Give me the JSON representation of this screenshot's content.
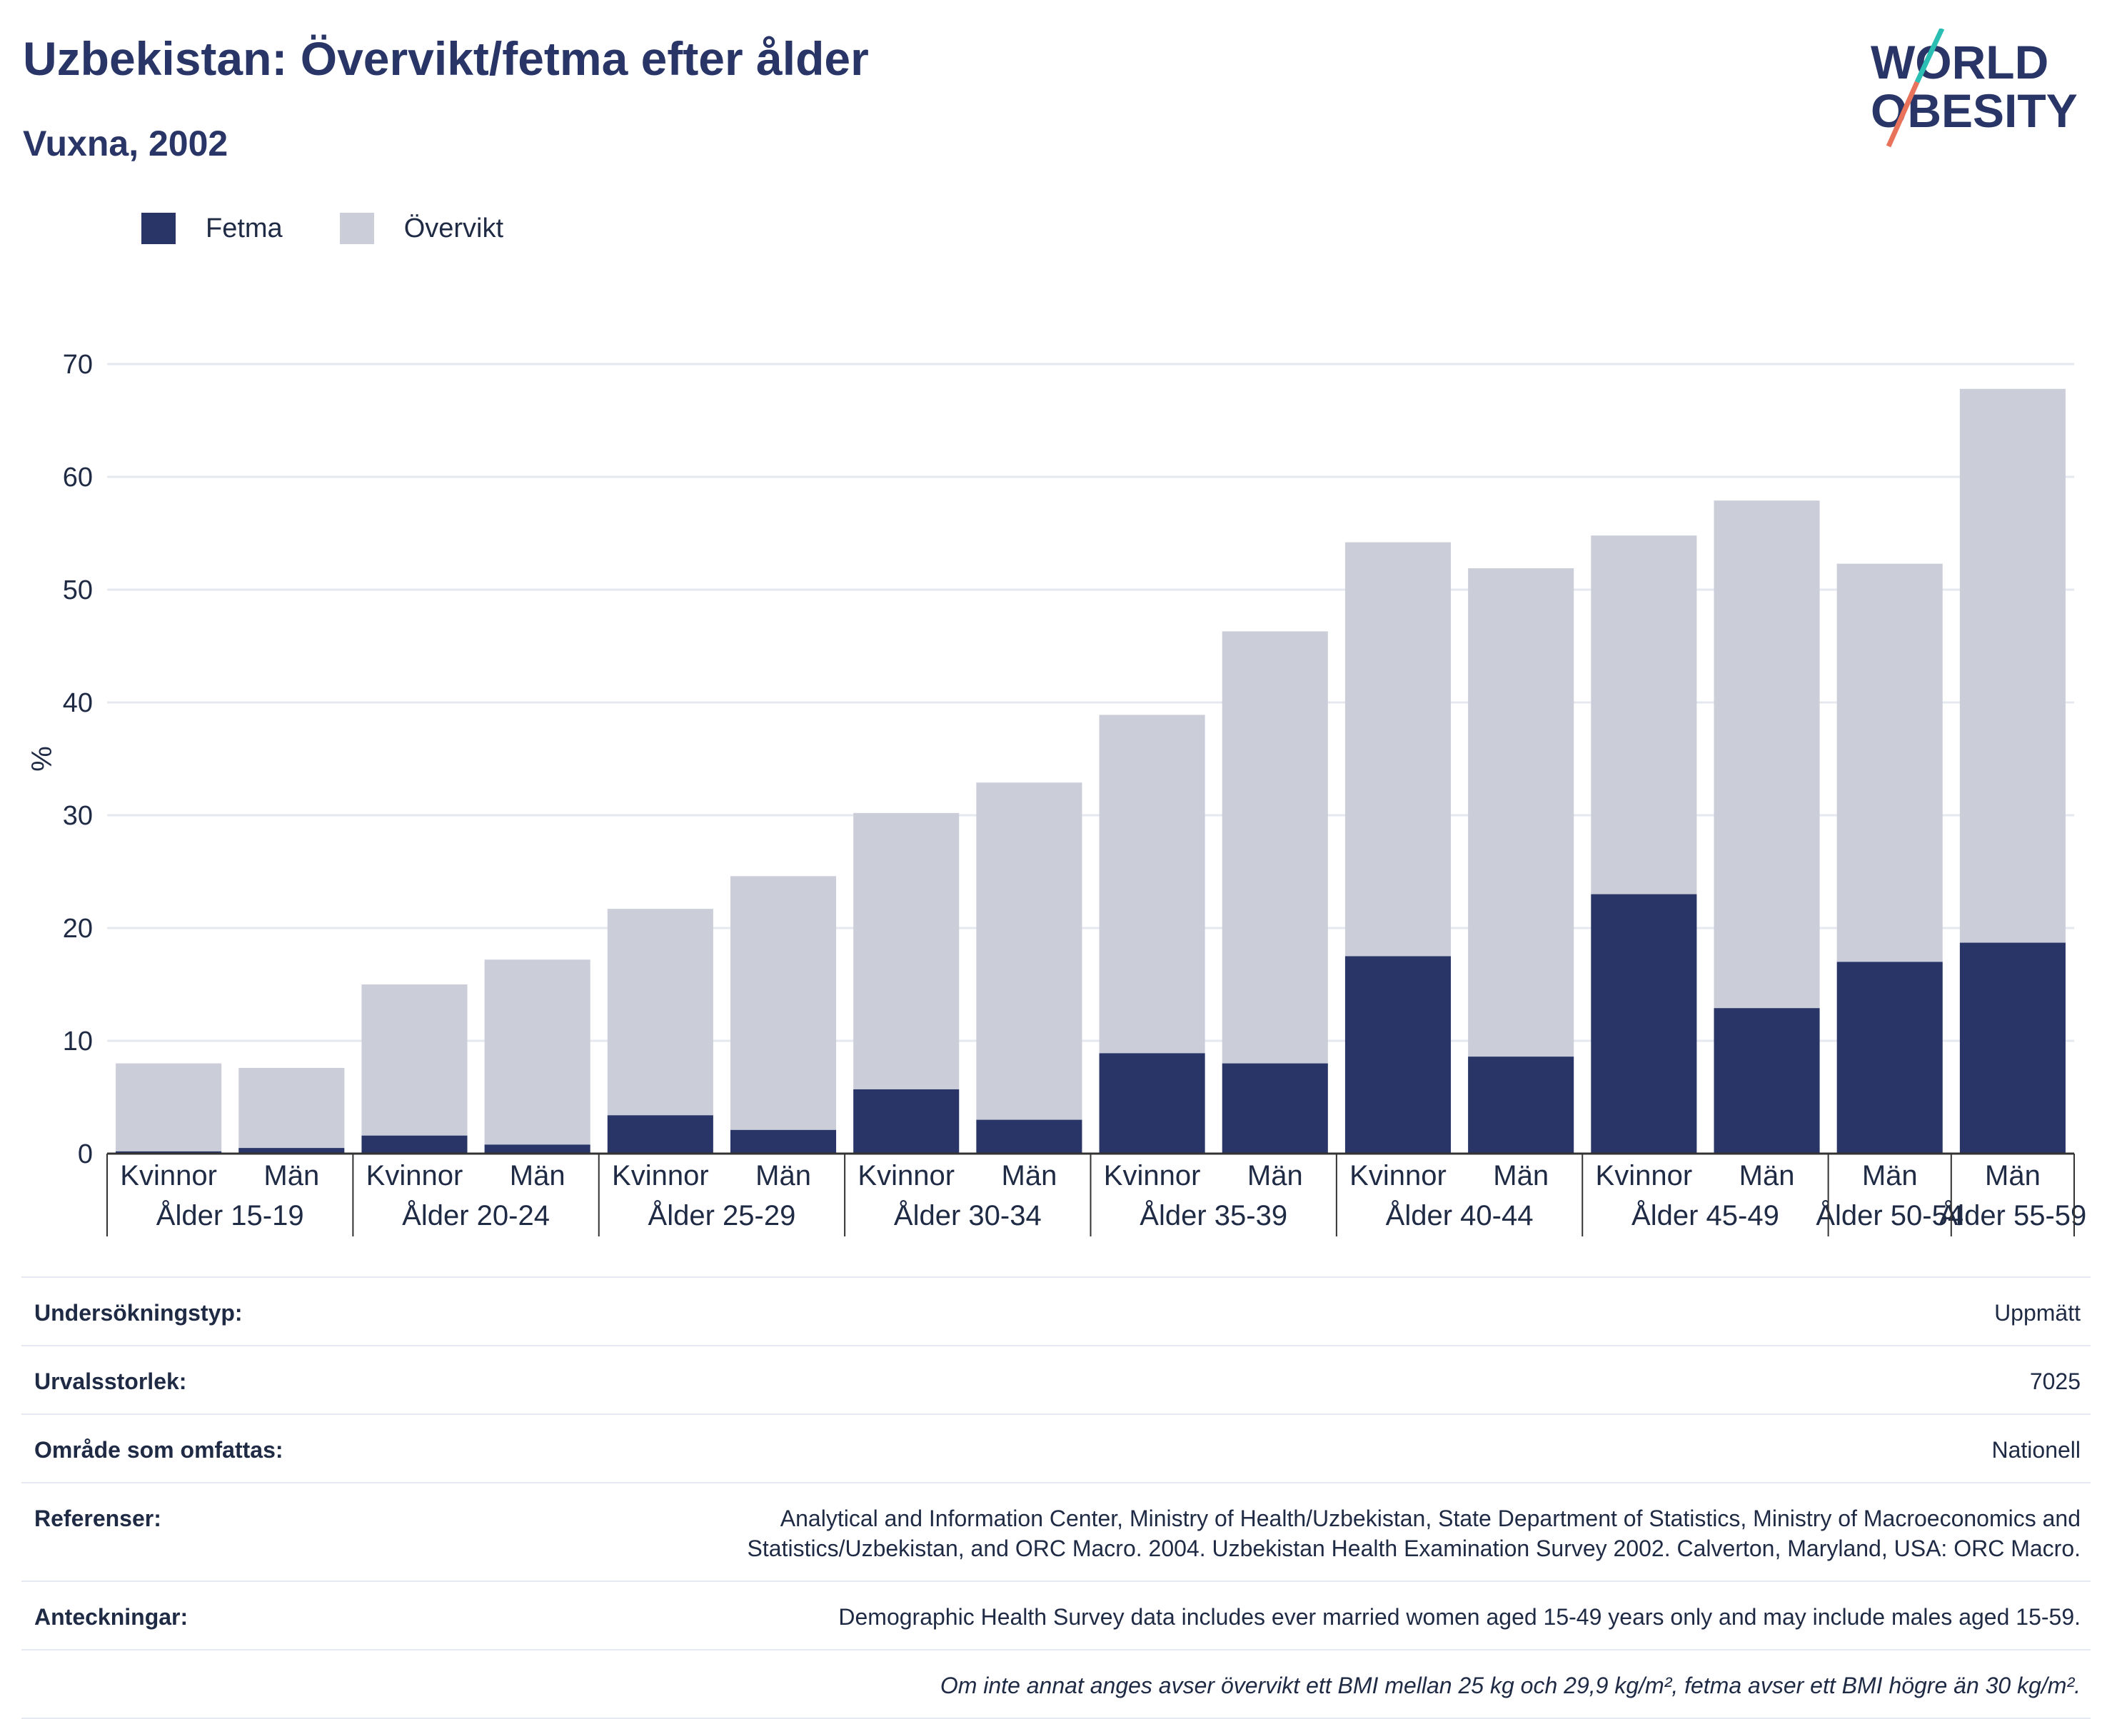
{
  "header": {
    "title": "Uzbekistan: Övervikt/fetma efter ålder",
    "subtitle": "Vuxna, 2002",
    "logo_line1": "WORLD",
    "logo_line2": "OBESITY"
  },
  "legend": {
    "items": [
      {
        "label": "Fetma",
        "color": "#283566"
      },
      {
        "label": "Övervikt",
        "color": "#cbcdd9"
      }
    ]
  },
  "chart_data": {
    "type": "bar",
    "stacked": true,
    "ylabel": "%",
    "ylim": [
      0,
      70
    ],
    "yticks": [
      0,
      10,
      20,
      30,
      40,
      50,
      60,
      70
    ],
    "grid": true,
    "legend_position": "top-left",
    "groups": [
      {
        "label": "Ålder 15-19",
        "bars": [
          "Kvinnor",
          "Män"
        ]
      },
      {
        "label": "Ålder 20-24",
        "bars": [
          "Kvinnor",
          "Män"
        ]
      },
      {
        "label": "Ålder 25-29",
        "bars": [
          "Kvinnor",
          "Män"
        ]
      },
      {
        "label": "Ålder 30-34",
        "bars": [
          "Kvinnor",
          "Män"
        ]
      },
      {
        "label": "Ålder 35-39",
        "bars": [
          "Kvinnor",
          "Män"
        ]
      },
      {
        "label": "Ålder 40-44",
        "bars": [
          "Kvinnor",
          "Män"
        ]
      },
      {
        "label": "Ålder 45-49",
        "bars": [
          "Kvinnor",
          "Män"
        ]
      },
      {
        "label": "Ålder 50-54",
        "bars": [
          "Män"
        ]
      },
      {
        "label": "Ålder 55-59",
        "bars": [
          "Män"
        ]
      }
    ],
    "categories": [
      "Kvinnor",
      "Män",
      "Kvinnor",
      "Män",
      "Kvinnor",
      "Män",
      "Kvinnor",
      "Män",
      "Kvinnor",
      "Män",
      "Kvinnor",
      "Män",
      "Kvinnor",
      "Män",
      "Män",
      "Män"
    ],
    "series": [
      {
        "name": "Fetma",
        "color": "#283566",
        "values": [
          0.2,
          0.5,
          1.6,
          0.8,
          3.4,
          2.1,
          5.7,
          3.0,
          8.9,
          8.0,
          17.5,
          8.6,
          23.0,
          12.9,
          17.0,
          18.7
        ]
      },
      {
        "name": "Övervikt",
        "color": "#cbcdd9",
        "values": [
          7.8,
          7.1,
          13.4,
          16.4,
          18.3,
          22.5,
          24.5,
          29.9,
          30.0,
          38.3,
          36.7,
          43.3,
          31.8,
          45.0,
          35.3,
          49.1
        ]
      }
    ]
  },
  "info": {
    "rows": [
      {
        "label": "Undersökningstyp:",
        "value": "Uppmätt"
      },
      {
        "label": "Urvalsstorlek:",
        "value": "7025"
      },
      {
        "label": "Område som omfattas:",
        "value": "Nationell"
      },
      {
        "label": "Referenser:",
        "value": "Analytical and Information Center, Ministry of Health/Uzbekistan, State Department of Statistics, Ministry of Macroeconomics and Statistics/Uzbekistan, and ORC Macro. 2004. Uzbekistan Health Examination Survey 2002. Calverton, Maryland, USA: ORC Macro."
      },
      {
        "label": "Anteckningar:",
        "value": "Demographic Health Survey data includes ever married women aged 15-49 years only and may include males aged 15-59."
      }
    ],
    "footnote": "Om inte annat anges avser övervikt ett BMI mellan 25 kg och 29,9 kg/m², fetma avser ett BMI högre än 30 kg/m²."
  }
}
